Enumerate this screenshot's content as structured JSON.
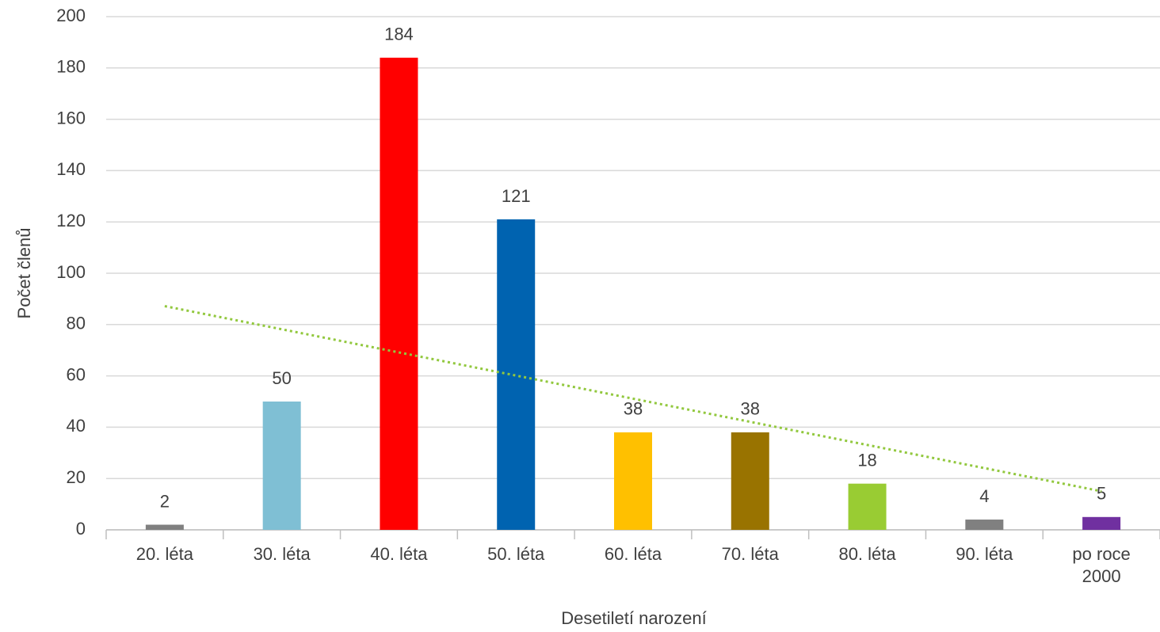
{
  "chart_data": {
    "type": "bar",
    "x_label": "Desetiletí narození",
    "y_label": "Počet členů",
    "categories": [
      "20. léta",
      "30. léta",
      "40. léta",
      "50. léta",
      "60. léta",
      "70. léta",
      "80. léta",
      "90. léta",
      "po roce 2000"
    ],
    "values": [
      2,
      50,
      184,
      121,
      38,
      38,
      18,
      4,
      5
    ],
    "colors": [
      "#808080",
      "#7fbfd4",
      "#ff0000",
      "#0063b0",
      "#ffc000",
      "#997300",
      "#99cc33",
      "#808080",
      "#7030a0"
    ],
    "ylim": [
      0,
      200
    ],
    "yticks": [
      0,
      20,
      40,
      60,
      80,
      100,
      120,
      140,
      160,
      180,
      200
    ],
    "grid": true,
    "trendline": {
      "type": "linear",
      "color": "#92c83e"
    }
  }
}
